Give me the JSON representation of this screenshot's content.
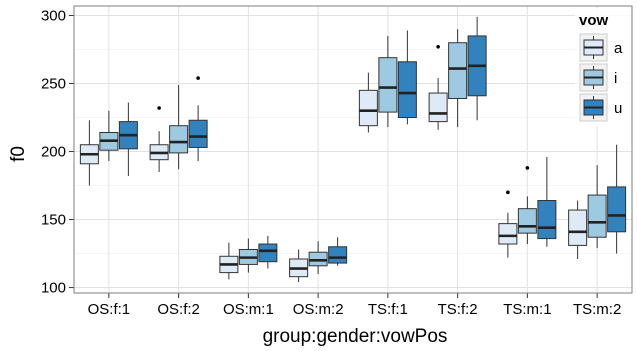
{
  "chart_data": {
    "type": "boxplot",
    "xlabel": "group:gender:vowPos",
    "ylabel": "f0",
    "ylim": [
      96,
      307
    ],
    "yticks": [
      100,
      150,
      200,
      250,
      300
    ],
    "grid": true,
    "legend": {
      "title": "vow",
      "position": "right-inset-top",
      "entries": [
        "a",
        "i",
        "u"
      ]
    },
    "colors": {
      "a": "#deebf7",
      "i": "#9ecae1",
      "u": "#3182bd"
    },
    "categories": [
      "OS:f:1",
      "OS:f:2",
      "OS:m:1",
      "OS:m:2",
      "TS:f:1",
      "TS:f:2",
      "TS:m:1",
      "TS:m:2"
    ],
    "series": [
      {
        "name": "a",
        "boxes": [
          {
            "min": 175,
            "q1": 191,
            "median": 198,
            "q3": 205,
            "max": 223,
            "outliers": []
          },
          {
            "min": 185,
            "q1": 194,
            "median": 199,
            "q3": 205,
            "max": 215,
            "outliers": [
              232
            ]
          },
          {
            "min": 106,
            "q1": 111,
            "median": 117,
            "q3": 123,
            "max": 133,
            "outliers": []
          },
          {
            "min": 104,
            "q1": 108,
            "median": 114,
            "q3": 121,
            "max": 128,
            "outliers": []
          },
          {
            "min": 214,
            "q1": 219,
            "median": 230,
            "q3": 245,
            "max": 258,
            "outliers": []
          },
          {
            "min": 216,
            "q1": 222,
            "median": 228,
            "q3": 243,
            "max": 254,
            "outliers": [
              277
            ]
          },
          {
            "min": 122,
            "q1": 132,
            "median": 138,
            "q3": 147,
            "max": 155,
            "outliers": [
              170
            ]
          },
          {
            "min": 121,
            "q1": 131,
            "median": 141,
            "q3": 157,
            "max": 164,
            "outliers": []
          }
        ]
      },
      {
        "name": "i",
        "boxes": [
          {
            "min": 193,
            "q1": 201,
            "median": 208,
            "q3": 214,
            "max": 230,
            "outliers": []
          },
          {
            "min": 187,
            "q1": 199,
            "median": 207,
            "q3": 219,
            "max": 249,
            "outliers": []
          },
          {
            "min": 111,
            "q1": 117,
            "median": 122,
            "q3": 128,
            "max": 136,
            "outliers": []
          },
          {
            "min": 110,
            "q1": 116,
            "median": 120,
            "q3": 126,
            "max": 134,
            "outliers": []
          },
          {
            "min": 218,
            "q1": 229,
            "median": 247,
            "q3": 269,
            "max": 285,
            "outliers": []
          },
          {
            "min": 218,
            "q1": 239,
            "median": 261,
            "q3": 280,
            "max": 290,
            "outliers": []
          },
          {
            "min": 132,
            "q1": 140,
            "median": 145,
            "q3": 158,
            "max": 167,
            "outliers": [
              188
            ]
          },
          {
            "min": 129,
            "q1": 137,
            "median": 148,
            "q3": 168,
            "max": 190,
            "outliers": []
          }
        ]
      },
      {
        "name": "u",
        "boxes": [
          {
            "min": 182,
            "q1": 202,
            "median": 212,
            "q3": 222,
            "max": 236,
            "outliers": []
          },
          {
            "min": 193,
            "q1": 203,
            "median": 211,
            "q3": 223,
            "max": 234,
            "outliers": [
              254
            ]
          },
          {
            "min": 114,
            "q1": 119,
            "median": 127,
            "q3": 132,
            "max": 138,
            "outliers": []
          },
          {
            "min": 116,
            "q1": 118,
            "median": 122,
            "q3": 130,
            "max": 137,
            "outliers": []
          },
          {
            "min": 220,
            "q1": 225,
            "median": 243,
            "q3": 266,
            "max": 289,
            "outliers": []
          },
          {
            "min": 223,
            "q1": 241,
            "median": 263,
            "q3": 285,
            "max": 299,
            "outliers": []
          },
          {
            "min": 130,
            "q1": 136,
            "median": 144,
            "q3": 164,
            "max": 196,
            "outliers": []
          },
          {
            "min": 125,
            "q1": 141,
            "median": 153,
            "q3": 174,
            "max": 205,
            "outliers": []
          }
        ]
      }
    ]
  }
}
